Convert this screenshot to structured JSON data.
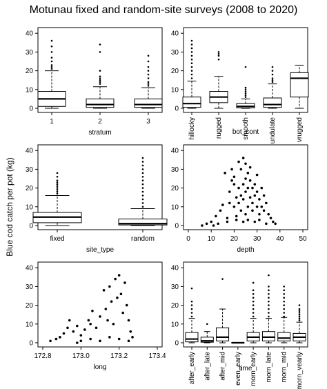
{
  "figure": {
    "title": "Motunau fixed and random-site surveys (2008 to 2020)",
    "ylabel": "Blue cod catch per pot (kg)"
  },
  "chart_data": [
    {
      "id": "stratum",
      "type": "box",
      "xlabel": "stratum",
      "ylim": [
        0,
        40
      ],
      "yticks": [
        0,
        10,
        20,
        30,
        40
      ],
      "categories": [
        "1",
        "2",
        "3"
      ],
      "boxes": [
        {
          "q1": 1,
          "median": 5,
          "q3": 9,
          "whisker_low": 0,
          "whisker_high": 20,
          "outliers": [
            21,
            22,
            23,
            25,
            27,
            30,
            33,
            36
          ]
        },
        {
          "q1": 0.5,
          "median": 2,
          "q3": 5,
          "whisker_low": 0,
          "whisker_high": 11.5,
          "outliers": [
            13,
            14,
            15,
            16,
            17,
            20,
            30,
            34
          ]
        },
        {
          "q1": 0.5,
          "median": 2,
          "q3": 5,
          "whisker_low": 0,
          "whisker_high": 11,
          "outliers": [
            12,
            13,
            14,
            16,
            18,
            20,
            22,
            25,
            28
          ]
        }
      ]
    },
    {
      "id": "bot_cont",
      "type": "box",
      "xlabel": "bot_cont",
      "ylim": [
        0,
        40
      ],
      "yticks": [
        0,
        10,
        20,
        30,
        40
      ],
      "categories": [
        "hillocky",
        "rugged",
        "smooth",
        "undulate",
        "vrugged"
      ],
      "boxes": [
        {
          "q1": 0.5,
          "median": 2.5,
          "q3": 6,
          "whisker_low": 0,
          "whisker_high": 14.5,
          "outliers": [
            16,
            18,
            20,
            22,
            24,
            26,
            28,
            30,
            32,
            34,
            36
          ]
        },
        {
          "q1": 3,
          "median": 6,
          "q3": 9,
          "whisker_low": 0,
          "whisker_high": 17,
          "outliers": [
            26,
            28,
            29,
            30
          ]
        },
        {
          "q1": 0.2,
          "median": 1,
          "q3": 2.5,
          "whisker_low": 0,
          "whisker_high": 5,
          "outliers": [
            6,
            7,
            8,
            9,
            10,
            11,
            22
          ]
        },
        {
          "q1": 0.5,
          "median": 2,
          "q3": 5.5,
          "whisker_low": 0,
          "whisker_high": 13,
          "outliers": [
            14,
            15,
            16,
            18,
            20,
            22
          ]
        },
        {
          "q1": 6,
          "median": 16,
          "q3": 19,
          "whisker_low": 0,
          "whisker_high": 23,
          "outliers": []
        }
      ]
    },
    {
      "id": "site_type",
      "type": "box",
      "xlabel": "site_type",
      "ylim": [
        0,
        40
      ],
      "yticks": [
        0,
        10,
        20,
        30,
        40
      ],
      "categories": [
        "fixed",
        "random"
      ],
      "boxes": [
        {
          "q1": 1.5,
          "median": 4.5,
          "q3": 7,
          "whisker_low": 0,
          "whisker_high": 16,
          "outliers": [
            17,
            18,
            19,
            20,
            21,
            22,
            23,
            24,
            26,
            28
          ]
        },
        {
          "q1": 0.3,
          "median": 1,
          "q3": 3.5,
          "whisker_low": 0,
          "whisker_high": 9,
          "outliers": [
            10,
            12,
            14,
            16,
            18,
            20,
            22,
            24,
            26,
            28,
            30,
            32,
            34,
            36
          ]
        }
      ]
    },
    {
      "id": "depth",
      "type": "scatter",
      "xlabel": "depth",
      "xlim": [
        0,
        50
      ],
      "ylim": [
        0,
        40
      ],
      "xticks": [
        0,
        10,
        20,
        30,
        40,
        50
      ],
      "yticks": [
        0,
        10,
        20,
        30,
        40
      ],
      "points": [
        [
          8,
          1
        ],
        [
          10,
          2
        ],
        [
          12,
          5
        ],
        [
          14,
          8
        ],
        [
          15,
          11
        ],
        [
          16,
          28
        ],
        [
          17,
          4
        ],
        [
          18,
          18
        ],
        [
          18,
          12
        ],
        [
          19,
          24
        ],
        [
          19,
          30
        ],
        [
          20,
          10
        ],
        [
          20,
          22
        ],
        [
          20,
          26
        ],
        [
          21,
          5
        ],
        [
          21,
          15
        ],
        [
          22,
          12
        ],
        [
          22,
          34
        ],
        [
          22,
          20
        ],
        [
          23,
          8
        ],
        [
          23,
          16
        ],
        [
          23,
          30
        ],
        [
          24,
          36
        ],
        [
          24,
          22
        ],
        [
          24,
          14
        ],
        [
          25,
          25
        ],
        [
          25,
          18
        ],
        [
          25,
          6
        ],
        [
          25,
          33
        ],
        [
          26,
          10
        ],
        [
          26,
          28
        ],
        [
          26,
          20
        ],
        [
          27,
          15
        ],
        [
          27,
          24
        ],
        [
          27,
          31
        ],
        [
          28,
          12
        ],
        [
          28,
          20
        ],
        [
          28,
          8
        ],
        [
          29,
          16
        ],
        [
          29,
          22
        ],
        [
          30,
          10
        ],
        [
          30,
          18
        ],
        [
          30,
          27
        ],
        [
          31,
          6
        ],
        [
          31,
          14
        ],
        [
          32,
          20
        ],
        [
          32,
          10
        ],
        [
          33,
          8
        ],
        [
          33,
          16
        ],
        [
          34,
          12
        ],
        [
          35,
          6
        ],
        [
          36,
          4
        ],
        [
          37,
          2
        ],
        [
          38,
          1
        ],
        [
          6,
          0
        ],
        [
          11,
          0
        ],
        [
          13,
          1
        ],
        [
          17,
          2
        ],
        [
          21,
          3
        ],
        [
          24,
          2
        ],
        [
          26,
          3
        ],
        [
          29,
          2
        ],
        [
          31,
          3
        ],
        [
          34,
          1
        ]
      ]
    },
    {
      "id": "long",
      "type": "scatter",
      "xlabel": "long",
      "xlim": [
        172.8,
        173.4
      ],
      "ylim": [
        0,
        40
      ],
      "xticks": [
        172.8,
        173.0,
        173.2,
        173.4
      ],
      "xticklabels": [
        "172.8",
        "173.0",
        "173.2",
        "173.4"
      ],
      "yticks": [
        0,
        10,
        20,
        30,
        40
      ],
      "points": [
        [
          172.84,
          1
        ],
        [
          172.87,
          2
        ],
        [
          172.89,
          3
        ],
        [
          172.91,
          5
        ],
        [
          172.93,
          8
        ],
        [
          172.94,
          12
        ],
        [
          172.96,
          6
        ],
        [
          172.98,
          9
        ],
        [
          173.0,
          4
        ],
        [
          173.02,
          7
        ],
        [
          173.04,
          12
        ],
        [
          173.05,
          10
        ],
        [
          173.06,
          17
        ],
        [
          173.08,
          8
        ],
        [
          173.1,
          14
        ],
        [
          173.12,
          28
        ],
        [
          173.13,
          18
        ],
        [
          173.14,
          12
        ],
        [
          173.15,
          30
        ],
        [
          173.16,
          22
        ],
        [
          173.17,
          10
        ],
        [
          173.18,
          34
        ],
        [
          173.19,
          24
        ],
        [
          173.2,
          36
        ],
        [
          173.21,
          26
        ],
        [
          173.22,
          16
        ],
        [
          173.23,
          32
        ],
        [
          173.24,
          20
        ],
        [
          173.25,
          12
        ],
        [
          173.26,
          6
        ],
        [
          173.27,
          3
        ],
        [
          172.98,
          0
        ],
        [
          173.0,
          1
        ],
        [
          173.05,
          2
        ],
        [
          173.1,
          1
        ],
        [
          173.15,
          3
        ],
        [
          173.2,
          2
        ],
        [
          173.25,
          1
        ]
      ]
    },
    {
      "id": "time",
      "type": "box",
      "xlabel": "time",
      "ylim": [
        0,
        40
      ],
      "yticks": [
        0,
        10,
        20,
        30,
        40
      ],
      "categories": [
        "after_early",
        "after_late",
        "after_mid",
        "even_early",
        "morn_early",
        "morn_late",
        "morn_mid",
        "morn_vearly"
      ],
      "boxes": [
        {
          "q1": 0.5,
          "median": 2,
          "q3": 5.5,
          "whisker_low": 0,
          "whisker_high": 13,
          "outliers": [
            14,
            16,
            18,
            20,
            22,
            29
          ]
        },
        {
          "q1": 0.3,
          "median": 1,
          "q3": 3,
          "whisker_low": 0,
          "whisker_high": 6,
          "outliers": [
            10
          ]
        },
        {
          "q1": 1,
          "median": 3,
          "q3": 8,
          "whisker_low": 0,
          "whisker_high": 18,
          "outliers": [
            34
          ]
        },
        {
          "q1": 0,
          "median": 0,
          "q3": 0.2,
          "whisker_low": 0,
          "whisker_high": 0.2,
          "outliers": []
        },
        {
          "q1": 1,
          "median": 3,
          "q3": 5.5,
          "whisker_low": 0,
          "whisker_high": 13,
          "outliers": [
            14,
            16,
            18,
            20,
            22,
            24,
            26,
            28,
            32
          ]
        },
        {
          "q1": 1,
          "median": 3,
          "q3": 6,
          "whisker_low": 0,
          "whisker_high": 13,
          "outliers": [
            14,
            16,
            18,
            20,
            22,
            24,
            26,
            28,
            30,
            36
          ]
        },
        {
          "q1": 1,
          "median": 2.5,
          "q3": 5.5,
          "whisker_low": 0,
          "whisker_high": 13.5,
          "outliers": [
            14,
            16,
            18,
            20,
            22,
            24,
            26,
            28,
            30
          ]
        },
        {
          "q1": 1,
          "median": 3,
          "q3": 5,
          "whisker_low": 0,
          "whisker_high": 11,
          "outliers": [
            12,
            13,
            14,
            15,
            16,
            17,
            18,
            20
          ]
        }
      ]
    }
  ]
}
